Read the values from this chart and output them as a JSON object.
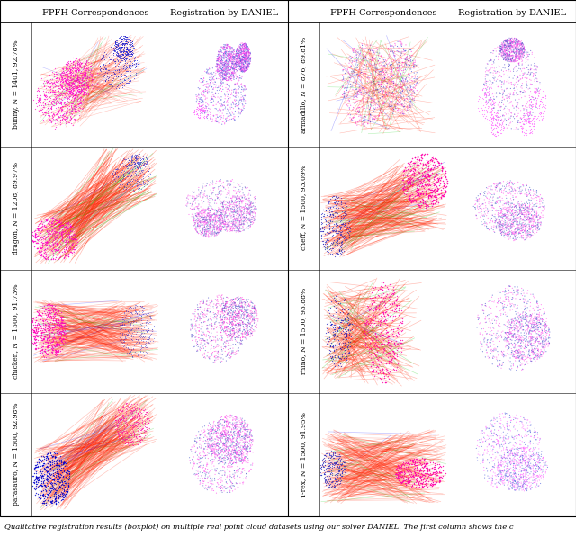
{
  "col_headers": [
    "FPFH Correspondences",
    "Registration by DANIEL"
  ],
  "row_labels_left": [
    "bunny, N = 1401, 92.78%",
    "dragon, N = 1208, 89.97%",
    "chicken, N = 1500, 91.73%",
    "parasauro, N = 1500, 92.98%"
  ],
  "row_labels_right": [
    "armadillo, N = 876, 89.81%",
    "cheff, N = 1500, 93.09%",
    "rhino, N = 1500, 93.88%",
    "T-rex, N = 1500, 91.95%"
  ],
  "caption": "Qualitative registration results (boxplot) on multiple real point cloud datasets using our solver DANIEL. The first column shows the c",
  "fig_width": 6.4,
  "fig_height": 6.07,
  "header_fontsize": 7.0,
  "label_fontsize": 5.5,
  "caption_fontsize": 6.0
}
